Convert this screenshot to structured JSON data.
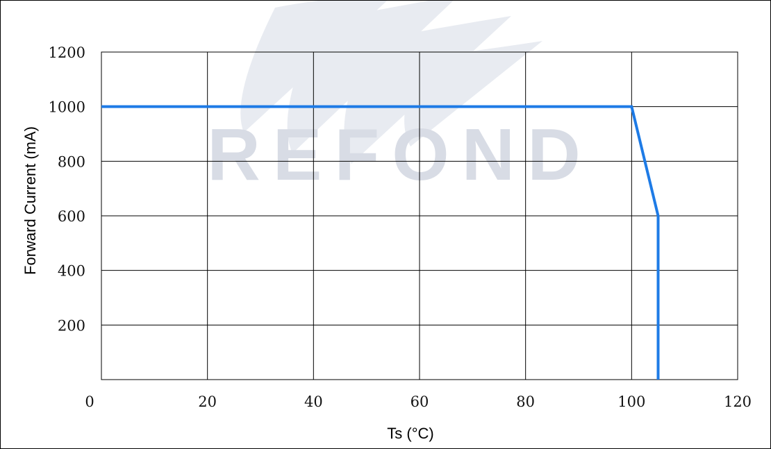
{
  "chart_data": {
    "type": "line",
    "xlabel": "Ts (°C)",
    "ylabel": "Forward Current (mA)",
    "xlim": [
      0,
      120
    ],
    "ylim": [
      0,
      1200
    ],
    "x_ticks": [
      "0",
      "20",
      "40",
      "60",
      "80",
      "100",
      "120"
    ],
    "y_ticks": [
      "200",
      "400",
      "600",
      "800",
      "1000",
      "1200"
    ],
    "grid": true,
    "series": [
      {
        "color": "#1e7be6",
        "points": [
          {
            "x": 0,
            "y": 1000
          },
          {
            "x": 100,
            "y": 1000
          },
          {
            "x": 105,
            "y": 600
          },
          {
            "x": 105,
            "y": 0
          }
        ]
      }
    ],
    "watermark": "REFOND"
  }
}
